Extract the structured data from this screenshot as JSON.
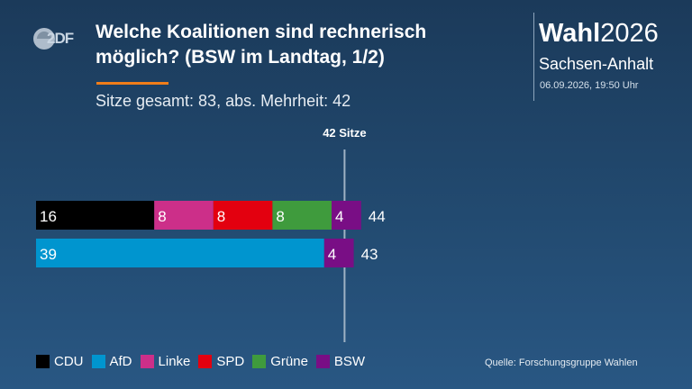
{
  "broadcaster": {
    "logo_text": "2DF"
  },
  "header": {
    "title": "Welche Koalitionen sind rechnerisch möglich? (BSW im Landtag, 1/2)",
    "subtitle": "Sitze gesamt: 83, abs. Mehrheit: 42"
  },
  "brand": {
    "word": "Wahl",
    "year": "2026",
    "state": "Sachsen-Anhalt",
    "timestamp": "06.09.2026, 19:50 Uhr"
  },
  "colors": {
    "CDU": "#000000",
    "AfD": "#0095cf",
    "Linke": "#cc2f89",
    "SPD": "#e3000f",
    "Grüne": "#3f9b3d",
    "BSW": "#790e85",
    "accent": "#f07d1a"
  },
  "chart_data": {
    "type": "bar",
    "orientation": "horizontal",
    "stacked": true,
    "majority_line": {
      "value": 42,
      "label": "42 Sitze"
    },
    "xlim": [
      0,
      83
    ],
    "bars": [
      {
        "segments": [
          {
            "party": "CDU",
            "value": 16
          },
          {
            "party": "Linke",
            "value": 8
          },
          {
            "party": "SPD",
            "value": 8
          },
          {
            "party": "Grüne",
            "value": 8
          },
          {
            "party": "BSW",
            "value": 4
          }
        ],
        "total": 44
      },
      {
        "segments": [
          {
            "party": "AfD",
            "value": 39
          },
          {
            "party": "BSW",
            "value": 4
          }
        ],
        "total": 43
      }
    ],
    "legend": [
      "CDU",
      "AfD",
      "Linke",
      "SPD",
      "Grüne",
      "BSW"
    ],
    "legend_position": "bottom-left"
  },
  "source": "Quelle: Forschungsgruppe Wahlen"
}
